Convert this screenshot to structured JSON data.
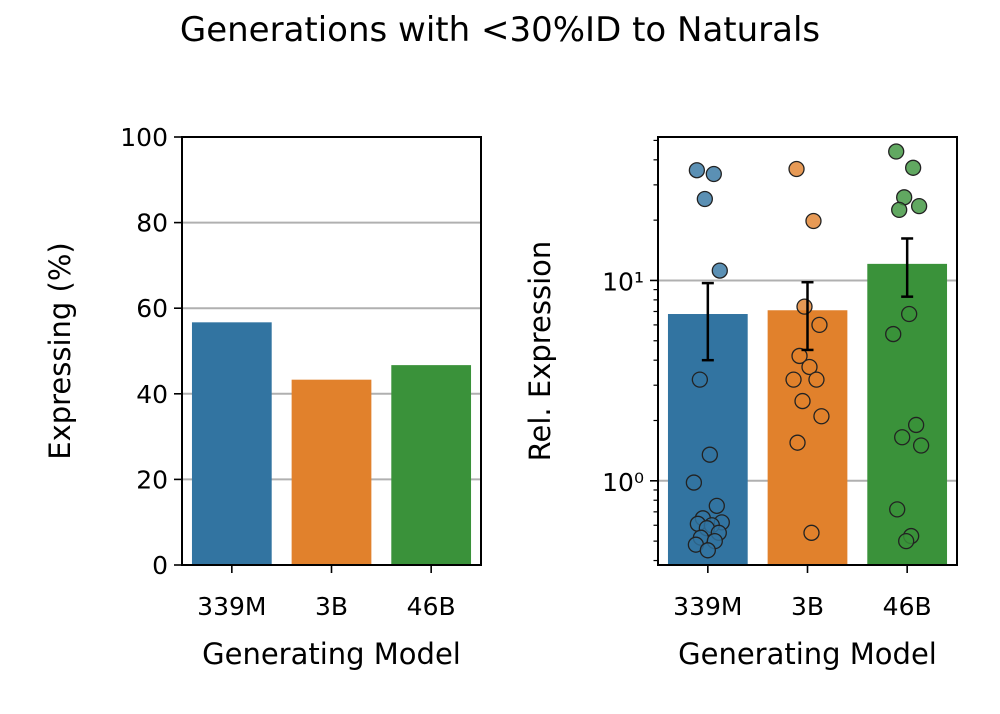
{
  "figure": {
    "title": "Generations with <30%ID to Naturals"
  },
  "colors": {
    "s339M": "#3274a1",
    "s3B": "#e1812c",
    "s46B": "#3a923a",
    "grid": "#b0b0b0"
  },
  "chart_data": [
    {
      "type": "bar",
      "title": "Generations with <30%ID to Naturals",
      "xlabel": "Generating Model",
      "ylabel": "Expressing (%)",
      "categories": [
        "339M",
        "3B",
        "46B"
      ],
      "values": [
        56.7,
        43.3,
        46.7
      ],
      "ylim": [
        0,
        100
      ],
      "yticks": [
        0,
        20,
        40,
        60,
        80,
        100
      ],
      "ytick_labels": [
        "0",
        "20",
        "40",
        "60",
        "80",
        "100"
      ],
      "grid": "y"
    },
    {
      "type": "bar",
      "xlabel": "Generating Model",
      "ylabel": "Rel. Expression",
      "yscale": "log",
      "categories": [
        "339M",
        "3B",
        "46B"
      ],
      "values": [
        6.8,
        7.1,
        12.1
      ],
      "error_low": [
        4.0,
        4.5,
        8.3
      ],
      "error_high": [
        9.7,
        9.8,
        16.2
      ],
      "ylim": [
        0.38,
        52
      ],
      "yticks_major": [
        1,
        10
      ],
      "ytick_labels": [
        "10⁰",
        "10¹"
      ],
      "grid": "y",
      "points": [
        [
          35.5,
          34.0,
          25.5,
          11.2,
          3.2,
          1.35,
          0.98,
          0.75,
          0.65,
          0.62,
          0.61,
          0.6,
          0.58,
          0.55,
          0.52,
          0.5,
          0.48,
          0.45
        ],
        [
          36.0,
          19.8,
          7.4,
          6.0,
          4.2,
          3.7,
          3.2,
          3.2,
          2.5,
          2.1,
          1.55,
          0.55
        ],
        [
          44.0,
          36.5,
          26.0,
          23.5,
          22.5,
          6.8,
          5.4,
          1.9,
          1.65,
          1.5,
          0.72,
          0.53,
          0.5
        ]
      ]
    }
  ]
}
